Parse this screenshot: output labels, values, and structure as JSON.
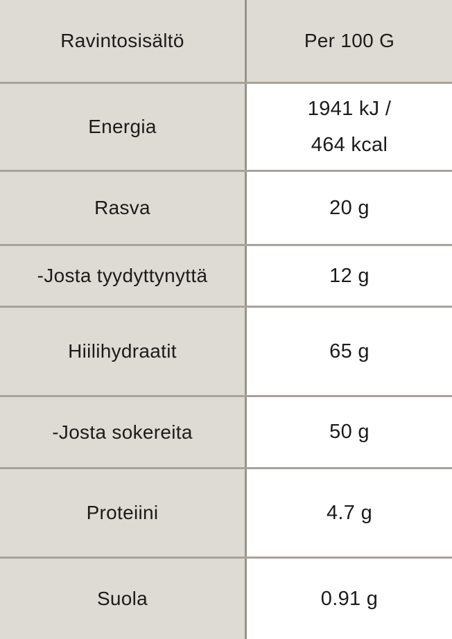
{
  "nutrition_table": {
    "header": {
      "label": "Ravintosisältö",
      "value": "Per 100 G"
    },
    "rows": [
      {
        "label": "Energia",
        "value": "1941 kJ /\n464 kcal"
      },
      {
        "label": "Rasva",
        "value": "20 g"
      },
      {
        "label": "-Josta tyydyttynyttä",
        "value": "12 g"
      },
      {
        "label": "Hiilihydraatit",
        "value": "65 g"
      },
      {
        "label": "-Josta sokereita",
        "value": "50 g"
      },
      {
        "label": "Proteiini",
        "value": "4.7 g"
      },
      {
        "label": "Suola",
        "value": "0.91 g"
      }
    ],
    "colors": {
      "label_column_bg": "#dddbd4",
      "value_column_bg": "#ffffff",
      "horizontal_divider": "#a9a29a",
      "vertical_divider": "#98928a",
      "text": "#1b1b19"
    }
  }
}
